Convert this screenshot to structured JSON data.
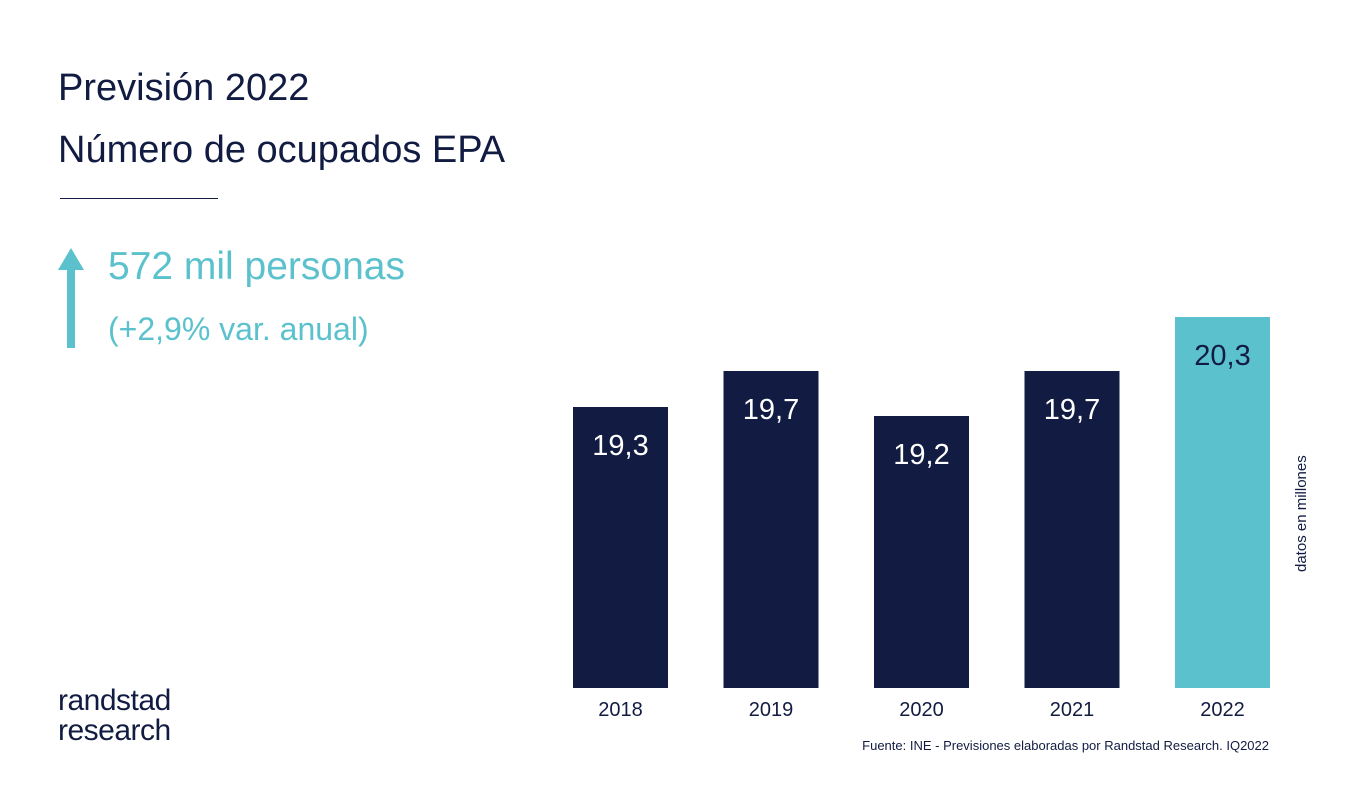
{
  "header": {
    "title_line_1": "Previsión 2022",
    "title_line_2": "Número de ocupados EPA"
  },
  "highlight": {
    "icon": "arrow-up-icon",
    "main": "572 mil personas",
    "sub": "(+2,9% var. anual)"
  },
  "chart_data": {
    "type": "bar",
    "categories": [
      "2018",
      "2019",
      "2020",
      "2021",
      "2022"
    ],
    "values": [
      19.3,
      19.7,
      19.2,
      19.7,
      20.3
    ],
    "value_labels": [
      "19,3",
      "19,7",
      "19,2",
      "19,7",
      "20,3"
    ],
    "title": "",
    "xlabel": "",
    "ylabel": "datos en millones",
    "grid": false,
    "legend": "none",
    "colors": {
      "default_bar": "#121c42",
      "forecast_bar": "#5bc2cd",
      "label_on_default": "#ffffff",
      "label_on_forecast": "#121c42"
    },
    "highlighted_category": "2022"
  },
  "brand": {
    "logo_line_1": "randstad",
    "logo_line_2": "research"
  },
  "footer": {
    "source": "Fuente: INE - Previsiones elaboradas por Randstad Research. IQ2022"
  }
}
